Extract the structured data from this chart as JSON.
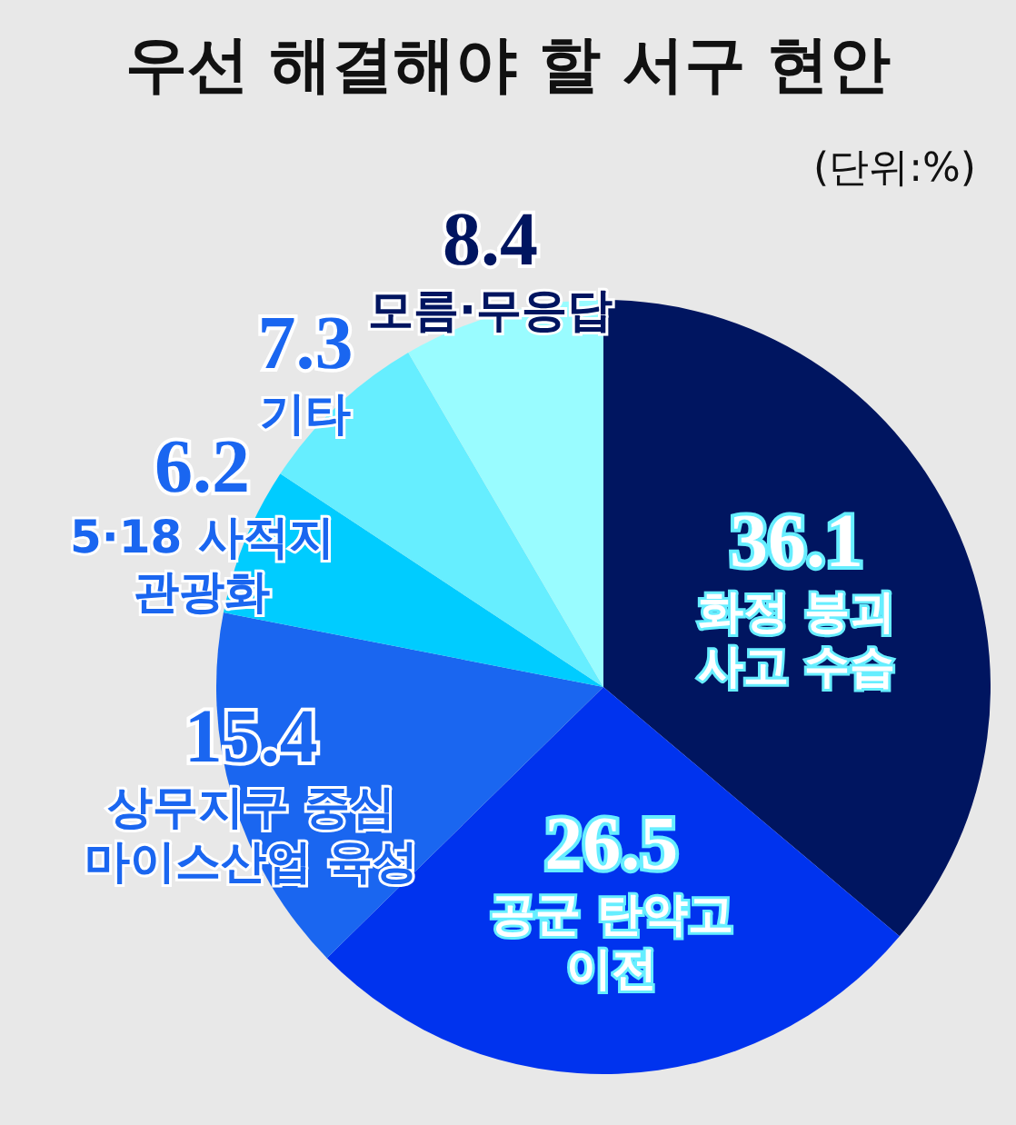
{
  "chart_data": {
    "type": "pie",
    "title": "우선 해결해야 할 서구 현안",
    "annotations": [
      "(단위:%)"
    ],
    "categories": [
      "화정 붕괴 사고 수습",
      "공군 탄약고 이전",
      "상무지구 중심 마이스산업 육성",
      "5·18 사적지 관광화",
      "기타",
      "모름·무응답"
    ],
    "values": [
      36.1,
      26.5,
      15.4,
      6.2,
      7.3,
      8.4
    ],
    "colors": [
      "#001560",
      "#0033ee",
      "#1a66f0",
      "#00ccff",
      "#66eeff",
      "#99fcff"
    ],
    "data_labels": true,
    "legend": false
  }
}
